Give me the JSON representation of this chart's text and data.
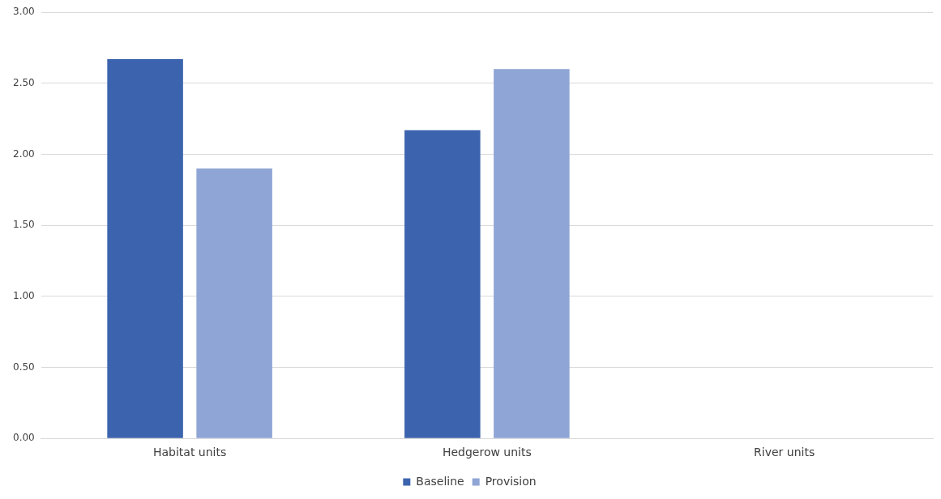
{
  "chart_data": {
    "type": "bar",
    "categories": [
      "Habitat units",
      "Hedgerow units",
      "River units"
    ],
    "series": [
      {
        "name": "Baseline",
        "color": "#3c64ae",
        "values": [
          2.67,
          2.17,
          0
        ]
      },
      {
        "name": "Provision",
        "color": "#8fa5d5",
        "values": [
          1.9,
          2.6,
          0
        ]
      }
    ],
    "ylim": [
      0,
      3
    ],
    "yticks": [
      {
        "value": 0,
        "label": "0.00"
      },
      {
        "value": 0.5,
        "label": "0.50"
      },
      {
        "value": 1,
        "label": "1.00"
      },
      {
        "value": 1.5,
        "label": "1.50"
      },
      {
        "value": 2,
        "label": "2.00"
      },
      {
        "value": 2.5,
        "label": "2.50"
      },
      {
        "value": 3,
        "label": "3.00"
      }
    ],
    "grid": "y",
    "legend": "bottom"
  }
}
